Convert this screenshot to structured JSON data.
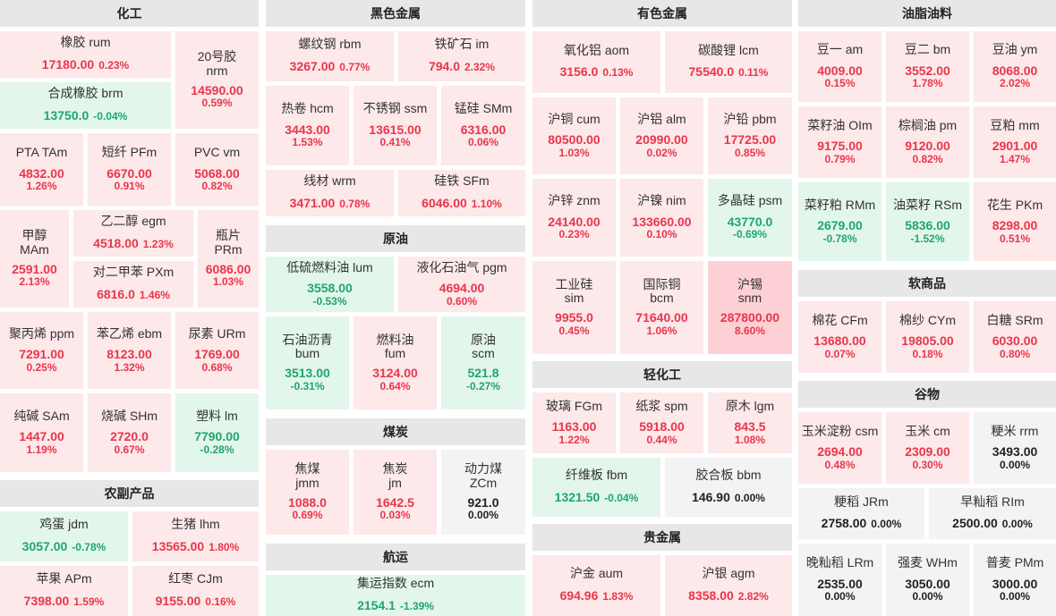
{
  "sections": [
    {
      "key": "chem",
      "title": "化工"
    },
    {
      "key": "agri",
      "title": "农副产品"
    },
    {
      "key": "ferrous",
      "title": "黑色金属"
    },
    {
      "key": "crude",
      "title": "原油"
    },
    {
      "key": "coal",
      "title": "煤炭"
    },
    {
      "key": "ship",
      "title": "航运"
    },
    {
      "key": "nonferrous",
      "title": "有色金属"
    },
    {
      "key": "light",
      "title": "轻化工"
    },
    {
      "key": "precious",
      "title": "贵金属"
    },
    {
      "key": "oils",
      "title": "油脂油料"
    },
    {
      "key": "soft",
      "title": "软商品"
    },
    {
      "key": "grain",
      "title": "谷物"
    }
  ],
  "items": [
    {
      "id": "rum",
      "name": "橡胶  rum",
      "price": "17180.00",
      "pct": "0.23%",
      "trend": "up"
    },
    {
      "id": "nrm",
      "name": "20号胶",
      "name2": "nrm",
      "price": "14590.00",
      "pct": "0.59%",
      "trend": "up"
    },
    {
      "id": "brm",
      "name": "合成橡胶  brm",
      "price": "13750.0",
      "pct": "-0.04%",
      "trend": "down"
    },
    {
      "id": "tam",
      "name": "PTA  TAm",
      "price": "4832.00",
      "pct": "1.26%",
      "trend": "up"
    },
    {
      "id": "pfm",
      "name": "短纤  PFm",
      "price": "6670.00",
      "pct": "0.91%",
      "trend": "up"
    },
    {
      "id": "vm",
      "name": "PVC  vm",
      "price": "5068.00",
      "pct": "0.82%",
      "trend": "up"
    },
    {
      "id": "mam",
      "name": "甲醇",
      "name2": "MAm",
      "price": "2591.00",
      "pct": "2.13%",
      "trend": "up"
    },
    {
      "id": "egm",
      "name": "乙二醇  egm",
      "price": "4518.00",
      "pct": "1.23%",
      "trend": "up"
    },
    {
      "id": "prm",
      "name": "瓶片",
      "name2": "PRm",
      "price": "6086.00",
      "pct": "1.03%",
      "trend": "up"
    },
    {
      "id": "pxm",
      "name": "对二甲苯  PXm",
      "price": "6816.0",
      "pct": "1.46%",
      "trend": "up"
    },
    {
      "id": "ppm",
      "name": "聚丙烯  ppm",
      "price": "7291.00",
      "pct": "0.25%",
      "trend": "up"
    },
    {
      "id": "ebm",
      "name": "苯乙烯  ebm",
      "price": "8123.00",
      "pct": "1.32%",
      "trend": "up"
    },
    {
      "id": "urm",
      "name": "尿素  URm",
      "price": "1769.00",
      "pct": "0.68%",
      "trend": "up"
    },
    {
      "id": "sam",
      "name": "纯碱  SAm",
      "price": "1447.00",
      "pct": "1.19%",
      "trend": "up"
    },
    {
      "id": "shm",
      "name": "烧碱  SHm",
      "price": "2720.0",
      "pct": "0.67%",
      "trend": "up"
    },
    {
      "id": "lm",
      "name": "塑料  lm",
      "price": "7790.00",
      "pct": "-0.28%",
      "trend": "down"
    },
    {
      "id": "jdm",
      "name": "鸡蛋  jdm",
      "price": "3057.00",
      "pct": "-0.78%",
      "trend": "down"
    },
    {
      "id": "lhm",
      "name": "生猪  lhm",
      "price": "13565.00",
      "pct": "1.80%",
      "trend": "up"
    },
    {
      "id": "apm",
      "name": "苹果  APm",
      "price": "7398.00",
      "pct": "1.59%",
      "trend": "up"
    },
    {
      "id": "cjm",
      "name": "红枣  CJm",
      "price": "9155.00",
      "pct": "0.16%",
      "trend": "up"
    },
    {
      "id": "rbm",
      "name": "螺纹钢  rbm",
      "price": "3267.00",
      "pct": "0.77%",
      "trend": "up"
    },
    {
      "id": "im",
      "name": "铁矿石  im",
      "price": "794.0",
      "pct": "2.32%",
      "trend": "up"
    },
    {
      "id": "hcm",
      "name": "热卷  hcm",
      "price": "3443.00",
      "pct": "1.53%",
      "trend": "up"
    },
    {
      "id": "ssm",
      "name": "不锈钢  ssm",
      "price": "13615.00",
      "pct": "0.41%",
      "trend": "up"
    },
    {
      "id": "smm",
      "name": "锰硅  SMm",
      "price": "6316.00",
      "pct": "0.06%",
      "trend": "up"
    },
    {
      "id": "wrm",
      "name": "线材  wrm",
      "price": "3471.00",
      "pct": "0.78%",
      "trend": "up"
    },
    {
      "id": "sfm",
      "name": "硅铁  SFm",
      "price": "6046.00",
      "pct": "1.10%",
      "trend": "up"
    },
    {
      "id": "lum",
      "name": "低硫燃料油  lum",
      "price": "3558.00",
      "pct": "-0.53%",
      "trend": "down"
    },
    {
      "id": "pgm",
      "name": "液化石油气  pgm",
      "price": "4694.00",
      "pct": "0.60%",
      "trend": "up"
    },
    {
      "id": "bum",
      "name": "石油沥青",
      "name2": "bum",
      "price": "3513.00",
      "pct": "-0.31%",
      "trend": "down"
    },
    {
      "id": "fum",
      "name": "燃料油",
      "name2": "fum",
      "price": "3124.00",
      "pct": "0.64%",
      "trend": "up"
    },
    {
      "id": "scm",
      "name": "原油",
      "name2": "scm",
      "price": "521.8",
      "pct": "-0.27%",
      "trend": "down"
    },
    {
      "id": "jmm",
      "name": "焦煤",
      "name2": "jmm",
      "price": "1088.0",
      "pct": "0.69%",
      "trend": "up"
    },
    {
      "id": "jm",
      "name": "焦炭",
      "name2": "jm",
      "price": "1642.5",
      "pct": "0.03%",
      "trend": "up"
    },
    {
      "id": "zcm",
      "name": "动力煤",
      "name2": "ZCm",
      "price": "921.0",
      "pct": "0.00%",
      "trend": "flat"
    },
    {
      "id": "ecm",
      "name": "集运指数  ecm",
      "price": "2154.1",
      "pct": "-1.39%",
      "trend": "down"
    },
    {
      "id": "aom",
      "name": "氧化铝  aom",
      "price": "3156.0",
      "pct": "0.13%",
      "trend": "up"
    },
    {
      "id": "lcm",
      "name": "碳酸锂  lcm",
      "price": "75540.0",
      "pct": "0.11%",
      "trend": "up"
    },
    {
      "id": "cum",
      "name": "沪铜  cum",
      "price": "80500.00",
      "pct": "1.03%",
      "trend": "up"
    },
    {
      "id": "alm",
      "name": "沪铝  alm",
      "price": "20990.00",
      "pct": "0.02%",
      "trend": "up"
    },
    {
      "id": "pbm",
      "name": "沪铅  pbm",
      "price": "17725.00",
      "pct": "0.85%",
      "trend": "up"
    },
    {
      "id": "znm",
      "name": "沪锌  znm",
      "price": "24140.00",
      "pct": "0.23%",
      "trend": "up"
    },
    {
      "id": "nim",
      "name": "沪镍  nim",
      "price": "133660.00",
      "pct": "0.10%",
      "trend": "up"
    },
    {
      "id": "psm",
      "name": "多晶硅  psm",
      "price": "43770.0",
      "pct": "-0.69%",
      "trend": "down"
    },
    {
      "id": "sim",
      "name": "工业硅",
      "name2": "sim",
      "price": "9955.0",
      "pct": "0.45%",
      "trend": "up"
    },
    {
      "id": "bcm",
      "name": "国际铜",
      "name2": "bcm",
      "price": "71640.00",
      "pct": "1.06%",
      "trend": "up"
    },
    {
      "id": "snm",
      "name": "沪锡",
      "name2": "snm",
      "price": "287800.00",
      "pct": "8.60%",
      "trend": "hot"
    },
    {
      "id": "fgm",
      "name": "玻璃  FGm",
      "price": "1163.00",
      "pct": "1.22%",
      "trend": "up"
    },
    {
      "id": "spm",
      "name": "纸浆  spm",
      "price": "5918.00",
      "pct": "0.44%",
      "trend": "up"
    },
    {
      "id": "lgm",
      "name": "原木  lgm",
      "price": "843.5",
      "pct": "1.08%",
      "trend": "up"
    },
    {
      "id": "fbm",
      "name": "纤维板  fbm",
      "price": "1321.50",
      "pct": "-0.04%",
      "trend": "down"
    },
    {
      "id": "bbm",
      "name": "胶合板  bbm",
      "price": "146.90",
      "pct": "0.00%",
      "trend": "flat"
    },
    {
      "id": "aum",
      "name": "沪金  aum",
      "price": "694.96",
      "pct": "1.83%",
      "trend": "up"
    },
    {
      "id": "agm",
      "name": "沪银  agm",
      "price": "8358.00",
      "pct": "2.82%",
      "trend": "up"
    },
    {
      "id": "am",
      "name": "豆一  am",
      "price": "4009.00",
      "pct": "0.15%",
      "trend": "up"
    },
    {
      "id": "bm",
      "name": "豆二  bm",
      "price": "3552.00",
      "pct": "1.78%",
      "trend": "up"
    },
    {
      "id": "ym",
      "name": "豆油  ym",
      "price": "8068.00",
      "pct": "2.02%",
      "trend": "up"
    },
    {
      "id": "oim",
      "name": "菜籽油  OIm",
      "price": "9175.00",
      "pct": "0.79%",
      "trend": "up"
    },
    {
      "id": "pm",
      "name": "棕榈油  pm",
      "price": "9120.00",
      "pct": "0.82%",
      "trend": "up"
    },
    {
      "id": "mm",
      "name": "豆粕  mm",
      "price": "2901.00",
      "pct": "1.47%",
      "trend": "up"
    },
    {
      "id": "rmm",
      "name": "菜籽粕  RMm",
      "price": "2679.00",
      "pct": "-0.78%",
      "trend": "down"
    },
    {
      "id": "rsm",
      "name": "油菜籽  RSm",
      "price": "5836.00",
      "pct": "-1.52%",
      "trend": "down"
    },
    {
      "id": "pkm",
      "name": "花生  PKm",
      "price": "8298.00",
      "pct": "0.51%",
      "trend": "up"
    },
    {
      "id": "cfm",
      "name": "棉花  CFm",
      "price": "13680.00",
      "pct": "0.07%",
      "trend": "up"
    },
    {
      "id": "cym",
      "name": "棉纱  CYm",
      "price": "19805.00",
      "pct": "0.18%",
      "trend": "up"
    },
    {
      "id": "srm",
      "name": "白糖  SRm",
      "price": "6030.00",
      "pct": "0.80%",
      "trend": "up"
    },
    {
      "id": "csm",
      "name": "玉米淀粉  csm",
      "price": "2694.00",
      "pct": "0.48%",
      "trend": "up"
    },
    {
      "id": "cm",
      "name": "玉米  cm",
      "price": "2309.00",
      "pct": "0.30%",
      "trend": "up"
    },
    {
      "id": "rrm",
      "name": "粳米  rrm",
      "price": "3493.00",
      "pct": "0.00%",
      "trend": "flat"
    },
    {
      "id": "jrm",
      "name": "粳稻  JRm",
      "price": "2758.00",
      "pct": "0.00%",
      "trend": "flat"
    },
    {
      "id": "rim",
      "name": "早籼稻  RIm",
      "price": "2500.00",
      "pct": "0.00%",
      "trend": "flat"
    },
    {
      "id": "lrm",
      "name": "晚籼稻  LRm",
      "price": "2535.00",
      "pct": "0.00%",
      "trend": "flat"
    },
    {
      "id": "whm",
      "name": "强麦  WHm",
      "price": "3050.00",
      "pct": "0.00%",
      "trend": "flat"
    },
    {
      "id": "pmm",
      "name": "普麦  PMm",
      "price": "3000.00",
      "pct": "0.00%",
      "trend": "flat"
    }
  ]
}
